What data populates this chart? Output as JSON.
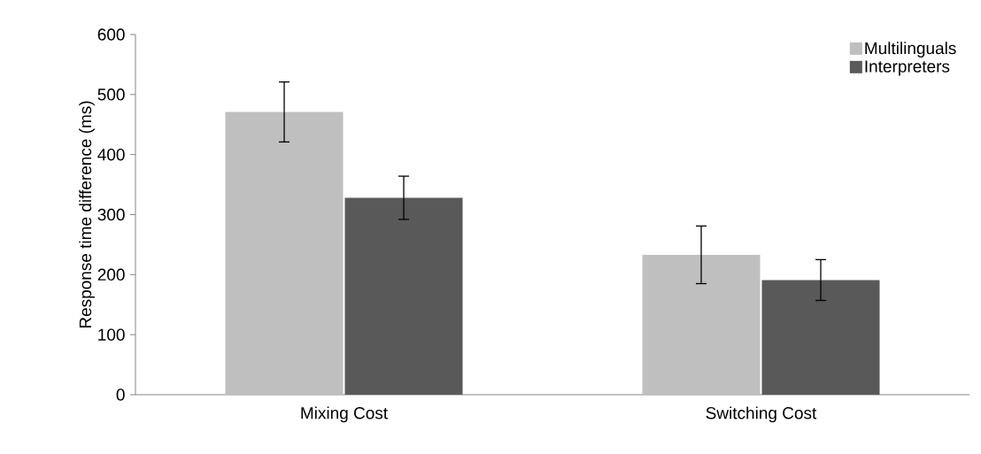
{
  "chart_data": {
    "type": "bar",
    "ylabel": "Response time difference (ms)",
    "categories": [
      "Mixing Cost",
      "Switching Cost"
    ],
    "series": [
      {
        "name": "Multilinguals",
        "color": "#bfbfbf",
        "values": [
          471,
          233
        ],
        "errors": [
          50,
          48
        ]
      },
      {
        "name": "Interpreters",
        "color": "#595959",
        "values": [
          328,
          191
        ],
        "errors": [
          36,
          34
        ]
      }
    ],
    "ylim": [
      0,
      600
    ],
    "yticks": [
      0,
      100,
      200,
      300,
      400,
      500,
      600
    ],
    "legend": "top right"
  }
}
